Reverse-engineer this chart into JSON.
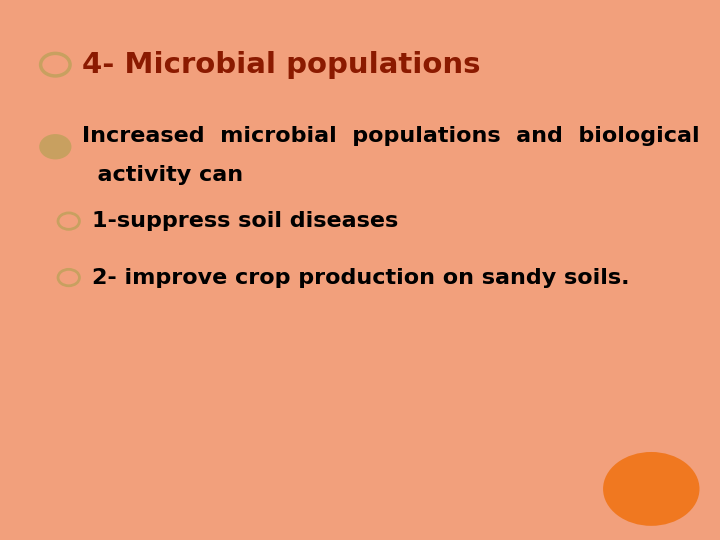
{
  "background_color": "#ffffff",
  "border_color": "#f2a07c",
  "title": "4- Microbial populations",
  "title_color": "#8b1a00",
  "title_fontsize": 21,
  "title_bullet_color": "#c8a060",
  "bullet1_text_line1": "Increased  microbial  populations  and  biological",
  "bullet1_text_line2": "  activity can",
  "bullet1_color": "#000000",
  "bullet1_fontsize": 16,
  "bullet1_bullet_color": "#c8a060",
  "sub_bullet2_text": "1-suppress soil diseases",
  "sub_bullet2_color": "#000000",
  "sub_bullet2_fontsize": 16,
  "sub_bullet2_bullet_color": "#c8a060",
  "sub_bullet3_text": "2- improve crop production on sandy soils.",
  "sub_bullet3_color": "#000000",
  "sub_bullet3_fontsize": 16,
  "sub_bullet3_bullet_color": "#c8a060",
  "orange_circle_color": "#f07820"
}
